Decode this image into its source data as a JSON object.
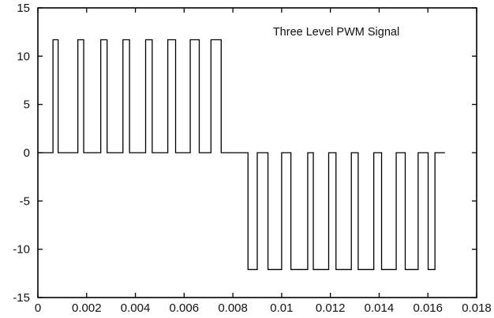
{
  "chart_data": {
    "type": "line",
    "title": "Three Level PWM Signal",
    "xlabel": "",
    "ylabel": "",
    "xlim": [
      0,
      0.018
    ],
    "ylim": [
      -15,
      15
    ],
    "x_ticks": [
      0,
      0.002,
      0.004,
      0.006,
      0.008,
      0.01,
      0.012,
      0.014,
      0.016,
      0.018
    ],
    "x_tick_labels": [
      "0",
      "0.002",
      "0.004",
      "0.006",
      "0.008",
      "0.01",
      "0.012",
      "0.014",
      "0.016",
      "0.018"
    ],
    "y_ticks": [
      -15,
      -10,
      -5,
      0,
      5,
      10,
      15
    ],
    "y_tick_labels": [
      "-15",
      "-10",
      "-5",
      "0",
      "5",
      "10",
      "15"
    ],
    "grid": false,
    "series": [
      {
        "color": "#000000",
        "x": [
          0.0,
          0.00062,
          0.00062,
          0.00083,
          0.00083,
          0.00164,
          0.00164,
          0.00188,
          0.00188,
          0.00258,
          0.00258,
          0.00284,
          0.00284,
          0.00349,
          0.00349,
          0.00376,
          0.00376,
          0.00442,
          0.00442,
          0.00469,
          0.00469,
          0.00533,
          0.00533,
          0.00565,
          0.00565,
          0.00625,
          0.00625,
          0.00662,
          0.00662,
          0.0071,
          0.0071,
          0.00752,
          0.00752,
          0.00862,
          0.00862,
          0.009,
          0.009,
          0.00944,
          0.00944,
          0.01,
          0.01,
          0.01038,
          0.01038,
          0.01107,
          0.01107,
          0.0113,
          0.0113,
          0.01193,
          0.01193,
          0.01223,
          0.01223,
          0.01286,
          0.01286,
          0.01314,
          0.01314,
          0.01378,
          0.01378,
          0.0141,
          0.0141,
          0.0147,
          0.0147,
          0.01507,
          0.01507,
          0.0156,
          0.0156,
          0.01601,
          0.01601,
          0.01629,
          0.01629,
          0.0167
        ],
        "y": [
          0,
          0,
          11.7,
          11.7,
          0,
          0,
          11.7,
          11.7,
          0,
          0,
          11.7,
          11.7,
          0,
          0,
          11.7,
          11.7,
          0,
          0,
          11.7,
          11.7,
          0,
          0,
          11.7,
          11.7,
          0,
          0,
          11.7,
          11.7,
          0,
          0,
          11.7,
          11.7,
          0,
          0,
          -12.1,
          -12.1,
          0,
          0,
          -12.1,
          -12.1,
          0,
          0,
          -12.1,
          -12.1,
          0,
          0,
          -12.1,
          -12.1,
          0,
          0,
          -12.1,
          -12.1,
          0,
          0,
          -12.1,
          -12.1,
          0,
          0,
          -12.1,
          -12.1,
          0,
          0,
          -12.1,
          -12.1,
          0,
          0,
          -12.1,
          -12.1,
          0,
          0
        ]
      }
    ]
  }
}
